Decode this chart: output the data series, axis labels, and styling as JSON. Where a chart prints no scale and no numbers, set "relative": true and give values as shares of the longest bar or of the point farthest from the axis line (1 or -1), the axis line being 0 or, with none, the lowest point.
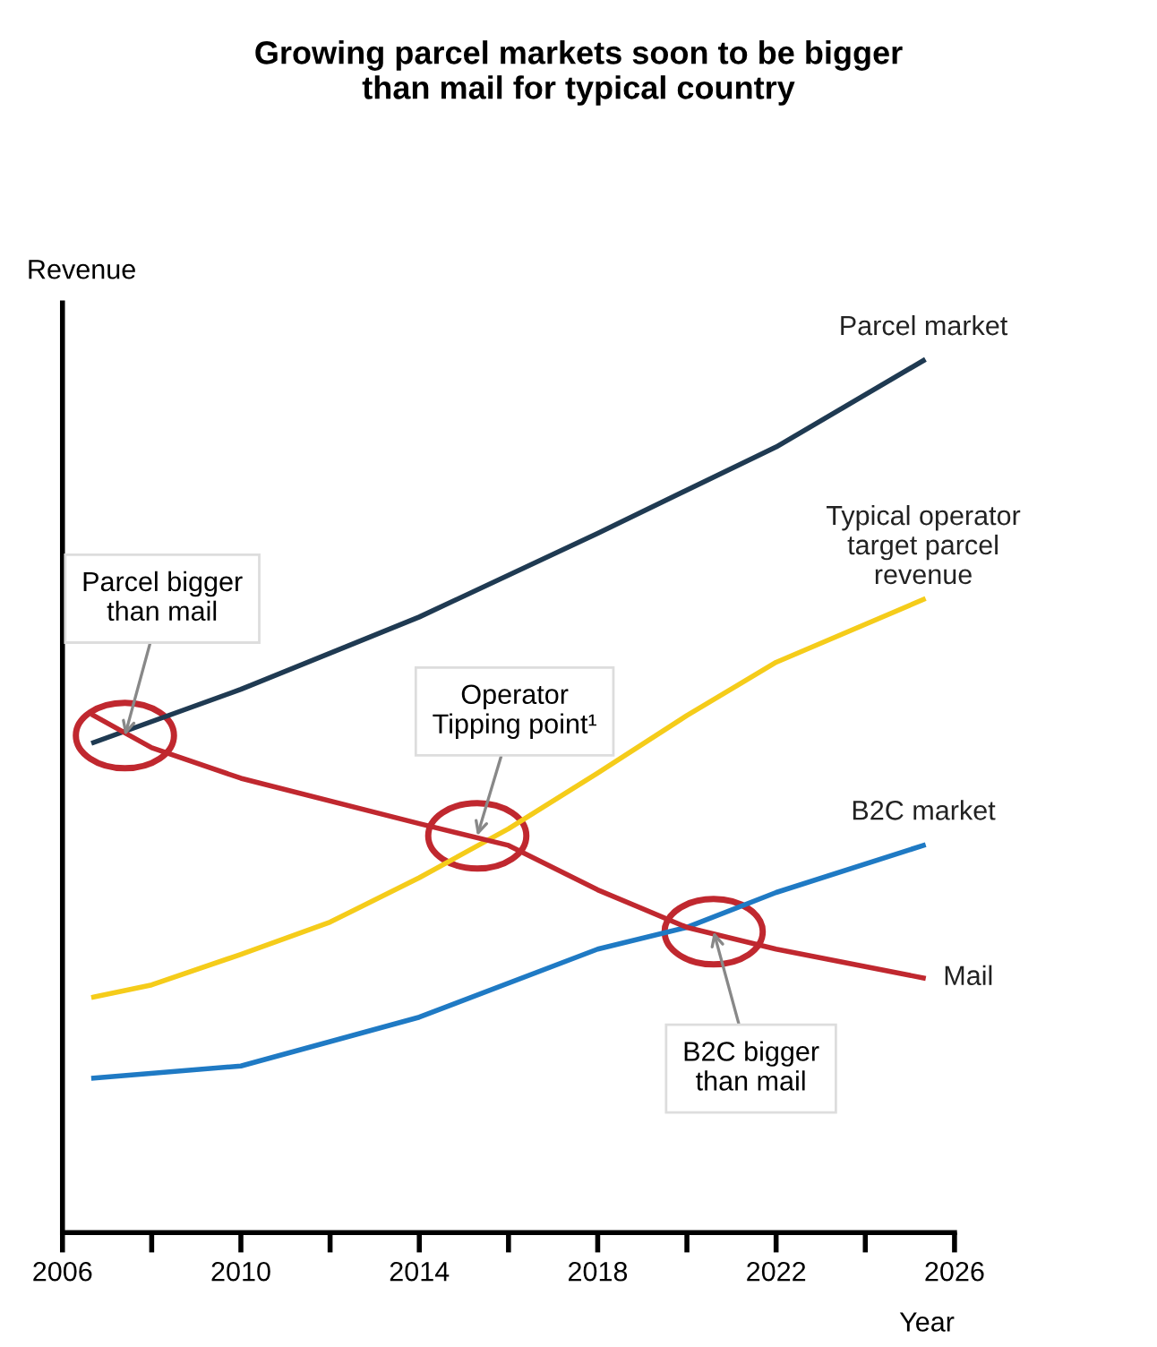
{
  "chart_data": {
    "type": "line",
    "title": "Growing parcel markets soon to be bigger\nthan mail for typical country",
    "xlabel": "Year",
    "ylabel": "Revenue",
    "relative": true,
    "xlim": [
      2006,
      2026
    ],
    "xticks": [
      2006,
      {
        "value": 2008,
        "label": null
      },
      2010,
      {
        "value": 2012,
        "label": null
      },
      2014,
      {
        "value": 2016,
        "label": null
      },
      2018,
      {
        "value": 2020,
        "label": null
      },
      2022,
      {
        "value": 2024,
        "label": null
      },
      2026
    ],
    "grid": false,
    "legend": false,
    "marker": "none",
    "line_style": "solid",
    "series": [
      {
        "name": "Parcel market",
        "color": "#1f3a52",
        "x": [
          2006.7,
          2010,
          2014,
          2018,
          2022,
          2025.3
        ],
        "values": [
          0.562,
          0.623,
          0.706,
          0.802,
          0.901,
          1
        ]
      },
      {
        "name": "Typical operator\ntarget parcel\nrevenue",
        "color": "#f5cc1a",
        "x": [
          2006.7,
          2008,
          2010,
          2012,
          2014,
          2016,
          2018,
          2020,
          2022,
          2025.3
        ],
        "values": [
          0.27,
          0.284,
          0.319,
          0.356,
          0.407,
          0.463,
          0.527,
          0.593,
          0.654,
          0.726
        ]
      },
      {
        "name": "B2C market",
        "color": "#1f7ac4",
        "x": [
          2006.7,
          2010,
          2014,
          2018,
          2020,
          2022,
          2025.3
        ],
        "values": [
          0.177,
          0.191,
          0.247,
          0.325,
          0.35,
          0.39,
          0.444
        ]
      },
      {
        "name": "Mail",
        "color": "#c0282f",
        "x": [
          2006.7,
          2008,
          2010,
          2014,
          2016,
          2018,
          2020,
          2022,
          2025.3
        ],
        "values": [
          0.593,
          0.556,
          0.521,
          0.469,
          0.444,
          0.393,
          0.35,
          0.325,
          0.292
        ]
      }
    ],
    "annotations": [
      {
        "text": "Parcel bigger\nthan mail",
        "x": 2007.4,
        "y": 0.57
      },
      {
        "text": "Operator\nTipping point¹",
        "x": 2015.3,
        "y": 0.455
      },
      {
        "text": "B2C bigger\nthan mail",
        "x": 2020.6,
        "y": 0.345
      }
    ]
  }
}
